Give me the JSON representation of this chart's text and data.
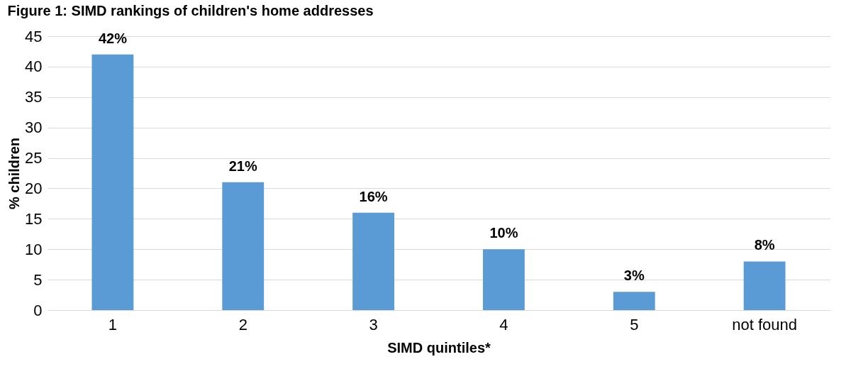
{
  "chart_data": {
    "type": "bar",
    "title": "Figure 1:  SIMD rankings of children's home addresses",
    "xlabel": "SIMD quintiles*",
    "ylabel": "% children",
    "categories": [
      "1",
      "2",
      "3",
      "4",
      "5",
      "not found"
    ],
    "values": [
      42,
      21,
      16,
      10,
      3,
      8
    ],
    "value_labels": [
      "42%",
      "21%",
      "16%",
      "10%",
      "3%",
      "8%"
    ],
    "color": "#5b9bd5",
    "ylim": [
      0,
      45
    ],
    "yticks": [
      0,
      5,
      10,
      15,
      20,
      25,
      30,
      35,
      40,
      45
    ],
    "grid": "y"
  }
}
